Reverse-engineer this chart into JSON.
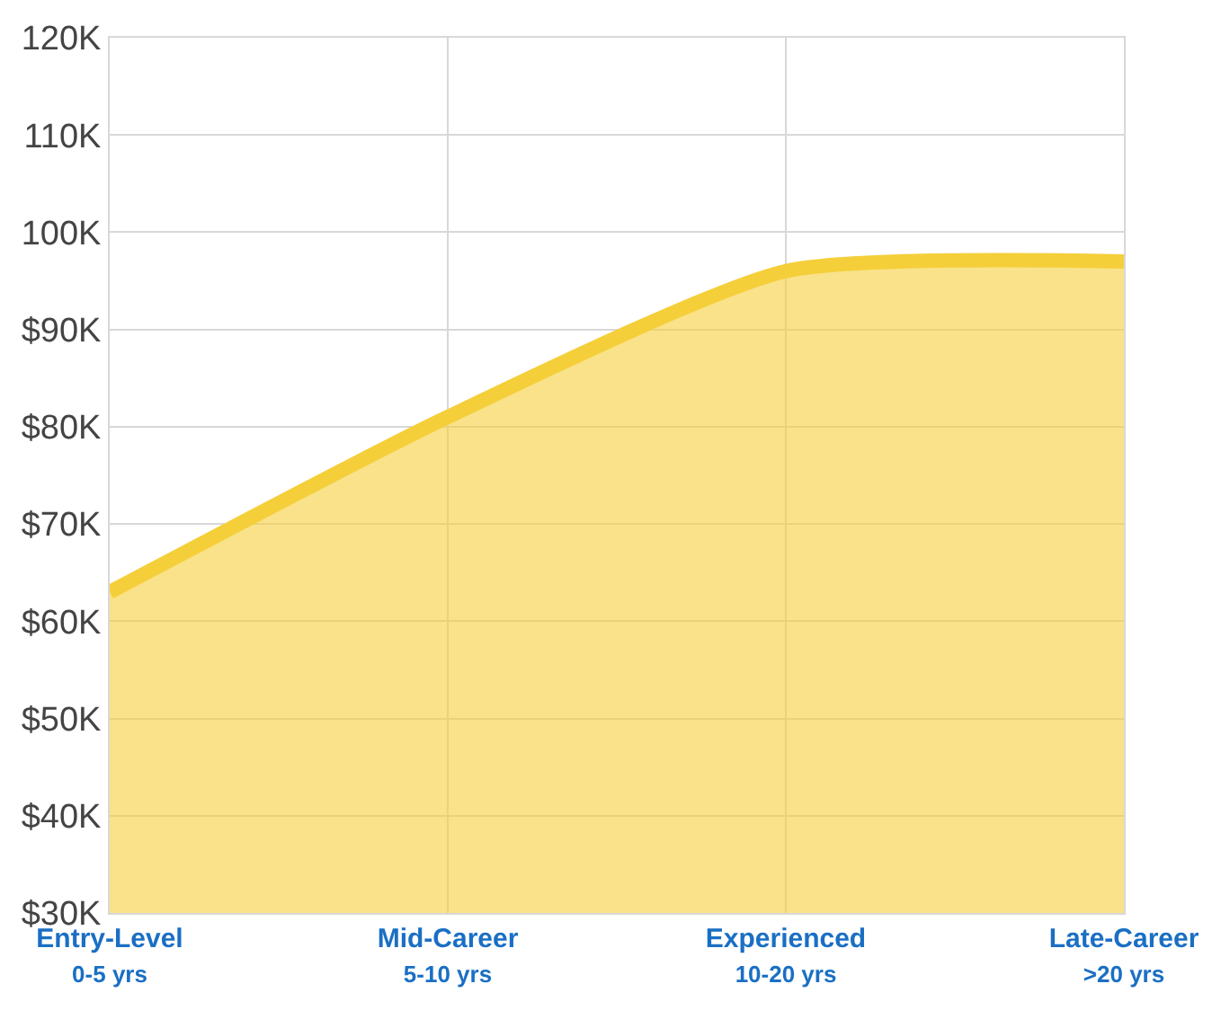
{
  "chart_data": {
    "type": "area",
    "categories": [
      "Entry-Level\n0-5 yrs",
      "Mid-Career\n5-10 yrs",
      "Experienced\n10-20 yrs",
      "Late-Career\n>20 yrs"
    ],
    "series": [
      {
        "color": "#f5cf3a",
        "values": [
          63000,
          81000,
          96000,
          97000
        ]
      }
    ],
    "ylim": [
      30000,
      120000
    ],
    "yticks": [
      {
        "value": 30000,
        "label": "$30K"
      },
      {
        "value": 40000,
        "label": "$40K"
      },
      {
        "value": 50000,
        "label": "$50K"
      },
      {
        "value": 60000,
        "label": "$60K"
      },
      {
        "value": 70000,
        "label": "$70K"
      },
      {
        "value": 80000,
        "label": "$80K"
      },
      {
        "value": 90000,
        "label": "$90K"
      },
      {
        "value": 100000,
        "label": "100K"
      },
      {
        "value": 110000,
        "label": "110K"
      },
      {
        "value": 120000,
        "label": "120K"
      }
    ],
    "grid": true,
    "legend": false
  }
}
